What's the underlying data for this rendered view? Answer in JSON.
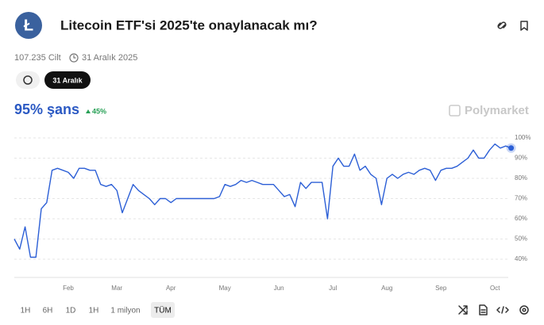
{
  "header": {
    "title": "Litecoin ETF'si 2025'te onaylanacak mı?",
    "volume": "107.235 Cilt",
    "end_date": "31 Aralık 2025",
    "date_pill": "31 Aralık"
  },
  "outcome": {
    "chance": "95% şans",
    "change": "45%"
  },
  "brand": "Polymarket",
  "range_buttons": [
    "1H",
    "6H",
    "1D",
    "1H",
    "1 milyon",
    "TÜM"
  ],
  "chart_data": {
    "type": "line",
    "categories": [
      null,
      null,
      null,
      null,
      null,
      null,
      null,
      null,
      null,
      null,
      "Feb",
      null,
      null,
      null,
      null,
      null,
      null,
      null,
      null,
      "Mar",
      null,
      null,
      null,
      null,
      null,
      null,
      null,
      null,
      null,
      "Apr",
      null,
      null,
      null,
      null,
      null,
      null,
      null,
      null,
      null,
      "May",
      null,
      null,
      null,
      null,
      null,
      null,
      null,
      null,
      null,
      "Jun",
      null,
      null,
      null,
      null,
      null,
      null,
      null,
      null,
      null,
      "Jul",
      null,
      null,
      null,
      null,
      null,
      null,
      null,
      null,
      null,
      "Aug",
      null,
      null,
      null,
      null,
      null,
      null,
      null,
      null,
      null,
      "Sep",
      null,
      null,
      null,
      null,
      null,
      null,
      null,
      null,
      null,
      "Oct",
      null,
      null,
      null
    ],
    "series": [
      {
        "color": "#2c5fd6",
        "values": [
          50,
          45,
          56,
          41,
          41,
          65,
          68,
          84,
          85,
          84,
          83,
          80,
          85,
          85,
          84,
          84,
          77,
          76,
          77,
          74,
          63,
          70,
          77,
          74,
          72,
          70,
          67,
          70,
          70,
          68,
          70,
          70,
          70,
          70,
          70,
          70,
          70,
          70,
          71,
          77,
          76,
          77,
          79,
          78,
          79,
          78,
          77,
          77,
          77,
          74,
          71,
          72,
          66,
          78,
          75,
          78,
          78,
          78,
          60,
          86,
          90,
          86,
          86,
          92,
          84,
          86,
          82,
          80,
          67,
          80,
          82,
          80,
          82,
          83,
          82,
          84,
          85,
          84,
          79,
          84,
          85,
          85,
          86,
          88,
          90,
          94,
          90,
          90,
          94,
          97,
          95,
          96,
          95
        ]
      }
    ],
    "ylim": [
      31,
      100
    ],
    "yticks": [
      {
        "value": 40,
        "label": "40%"
      },
      {
        "value": 50,
        "label": "50%"
      },
      {
        "value": 60,
        "label": "60%"
      },
      {
        "value": 70,
        "label": "70%"
      },
      {
        "value": 80,
        "label": "80%"
      },
      {
        "value": 90,
        "label": "90%"
      },
      {
        "value": 100,
        "label": "100%"
      }
    ],
    "grid": true
  }
}
